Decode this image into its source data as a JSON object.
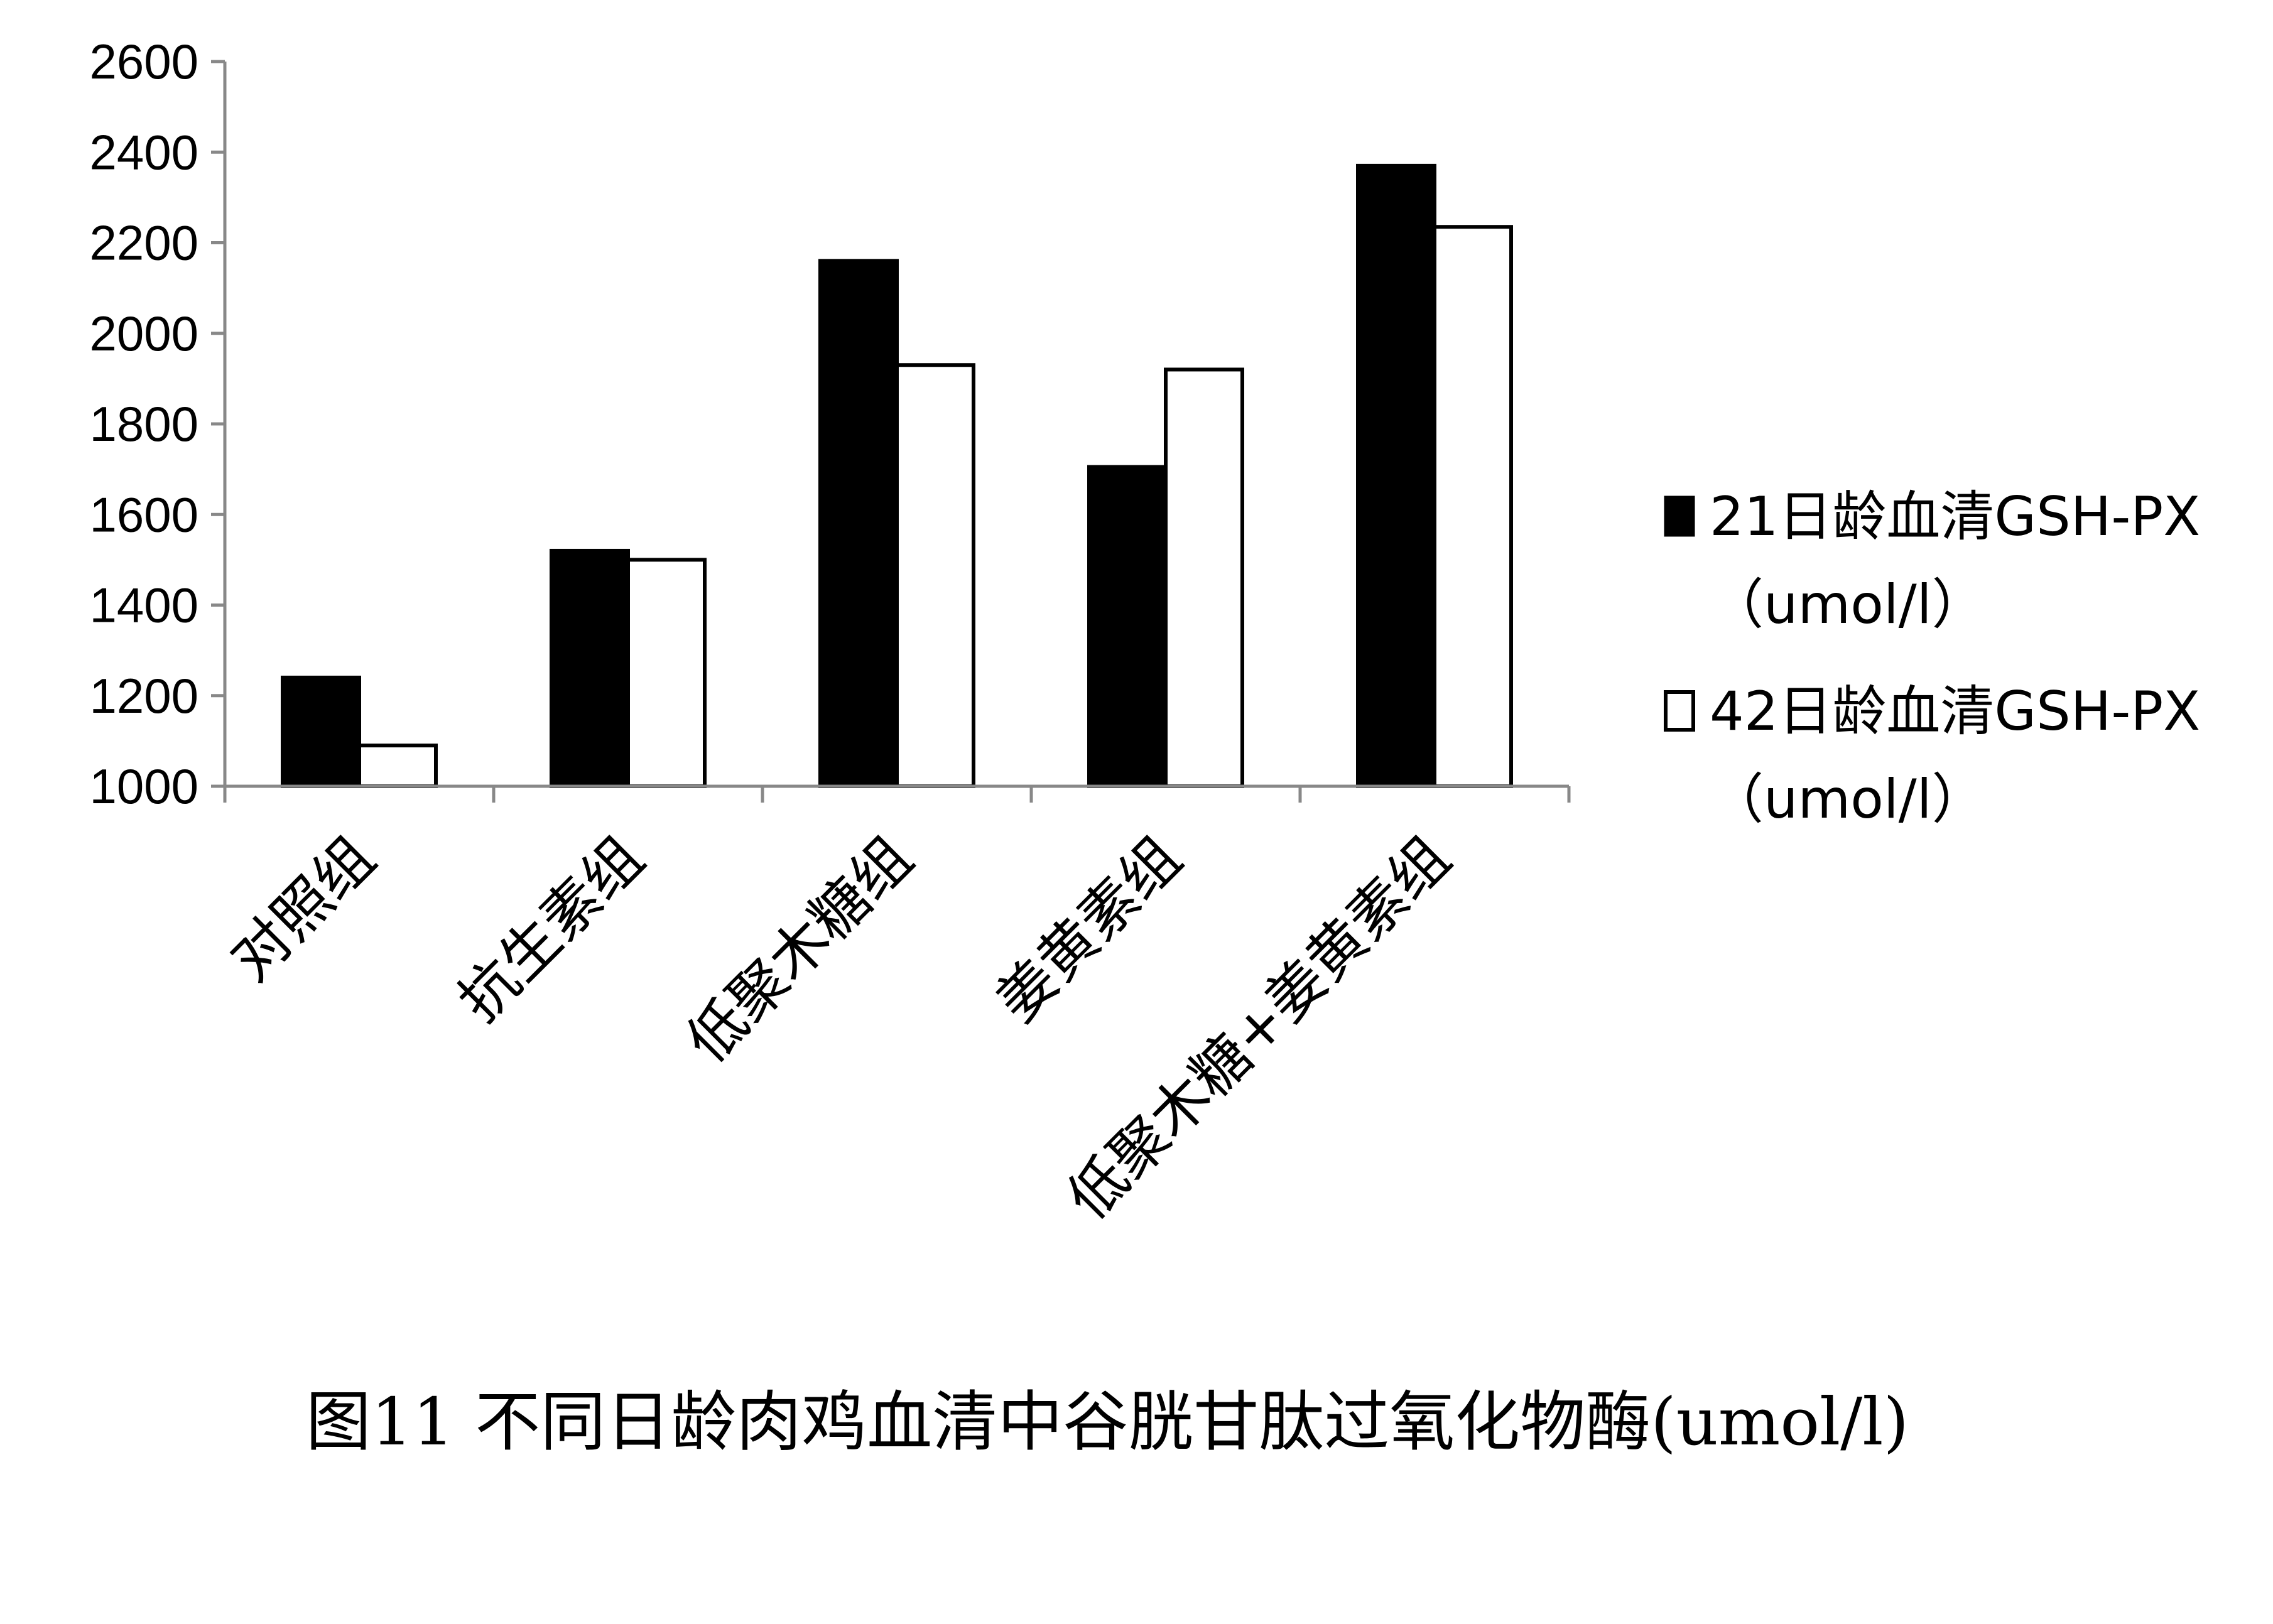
{
  "chart_data": {
    "type": "bar",
    "categories": [
      "对照组",
      "抗生素组",
      "低聚木糖组",
      "姜黄素组",
      "低聚木糖+姜黄素组"
    ],
    "series": [
      {
        "name": "21日龄血清GSH-PX（umol/l）",
        "values": [
          1240,
          1520,
          2160,
          1705,
          2370
        ],
        "color": "#000000"
      },
      {
        "name": "42日龄血清GSH-PX（umol/l）",
        "values": [
          1090,
          1500,
          1930,
          1920,
          2235
        ],
        "color": "#ffffff"
      }
    ],
    "ylim": [
      1000,
      2600
    ],
    "yticks": [
      1000,
      1200,
      1400,
      1600,
      1800,
      2000,
      2200,
      2400,
      2600
    ],
    "xlabel": "",
    "ylabel": "",
    "grid": false,
    "legend_position": "right"
  },
  "legend": {
    "items": [
      {
        "line1": "21日龄血清GSH-PX",
        "line2": "（umol/l）"
      },
      {
        "line1": "42日龄血清GSH-PX",
        "line2": "（umol/l）"
      }
    ]
  },
  "caption": "图11 不同日龄肉鸡血清中谷胱甘肽过氧化物酶(umol/l)"
}
